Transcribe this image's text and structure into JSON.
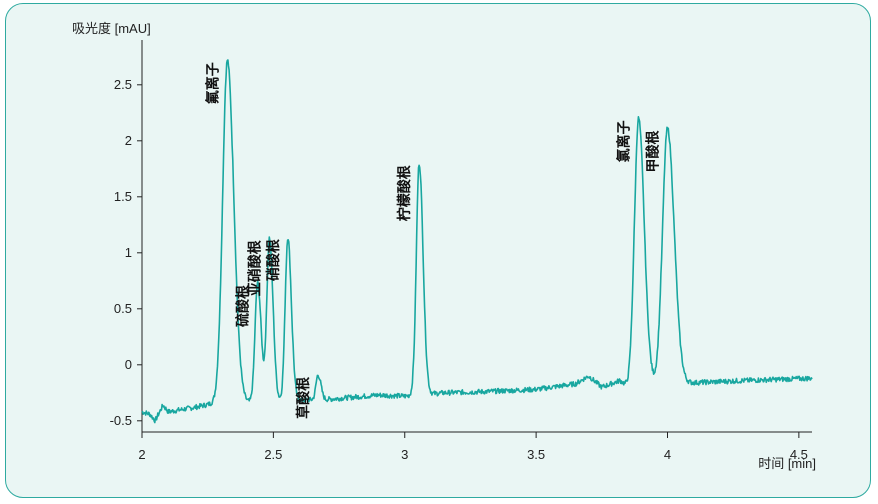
{
  "chart_data": {
    "type": "line",
    "ylabel": "吸光度 [mAU]",
    "xlabel": "时间 [min]",
    "xlim": [
      2.0,
      4.55
    ],
    "ylim": [
      -0.6,
      2.9
    ],
    "xticks": [
      2,
      2.5,
      3,
      3.5,
      4,
      4.5
    ],
    "yticks": [
      -0.5,
      0,
      0.5,
      1,
      1.5,
      2,
      2.5
    ],
    "ytick_labels": [
      "-0.5",
      "0",
      "0.5",
      "1",
      "1.5",
      "2",
      "2.5"
    ],
    "xtick_labels": [
      "2",
      "2.5",
      "3",
      "3.5",
      "4",
      "4.5"
    ],
    "line_color": "#19a7a0",
    "grid": false,
    "baseline": [
      [
        2.0,
        -0.42
      ],
      [
        2.03,
        -0.44
      ],
      [
        2.05,
        -0.5
      ],
      [
        2.08,
        -0.36
      ],
      [
        2.1,
        -0.42
      ],
      [
        2.2,
        -0.38
      ],
      [
        2.28,
        -0.34
      ],
      [
        2.4,
        -0.34
      ],
      [
        2.5,
        -0.32
      ],
      [
        2.7,
        -0.31
      ],
      [
        2.9,
        -0.27
      ],
      [
        3.0,
        -0.28
      ],
      [
        3.15,
        -0.25
      ],
      [
        3.3,
        -0.24
      ],
      [
        3.5,
        -0.22
      ],
      [
        3.65,
        -0.17
      ],
      [
        3.7,
        -0.1
      ],
      [
        3.75,
        -0.2
      ],
      [
        3.82,
        -0.14
      ],
      [
        3.85,
        -0.2
      ],
      [
        4.1,
        -0.16
      ],
      [
        4.3,
        -0.14
      ],
      [
        4.55,
        -0.12
      ]
    ],
    "peaks": [
      {
        "label": "氟离子",
        "x": 2.325,
        "y": 2.72,
        "w": 0.018
      },
      {
        "label": "硫酸根",
        "x": 2.44,
        "y": 0.73,
        "w": 0.01
      },
      {
        "label": "亚硝酸根",
        "x": 2.485,
        "y": 1.13,
        "w": 0.01
      },
      {
        "label": "硝酸根",
        "x": 2.555,
        "y": 1.14,
        "w": 0.01
      },
      {
        "label": "草酸根",
        "x": 2.67,
        "y": -0.09,
        "w": 0.008
      },
      {
        "label": "柠檬酸根",
        "x": 3.055,
        "y": 1.8,
        "w": 0.011
      },
      {
        "label": "氯离子",
        "x": 3.89,
        "y": 2.2,
        "w": 0.016
      },
      {
        "label": "甲酸根",
        "x": 4.0,
        "y": 2.11,
        "w": 0.019
      }
    ]
  }
}
